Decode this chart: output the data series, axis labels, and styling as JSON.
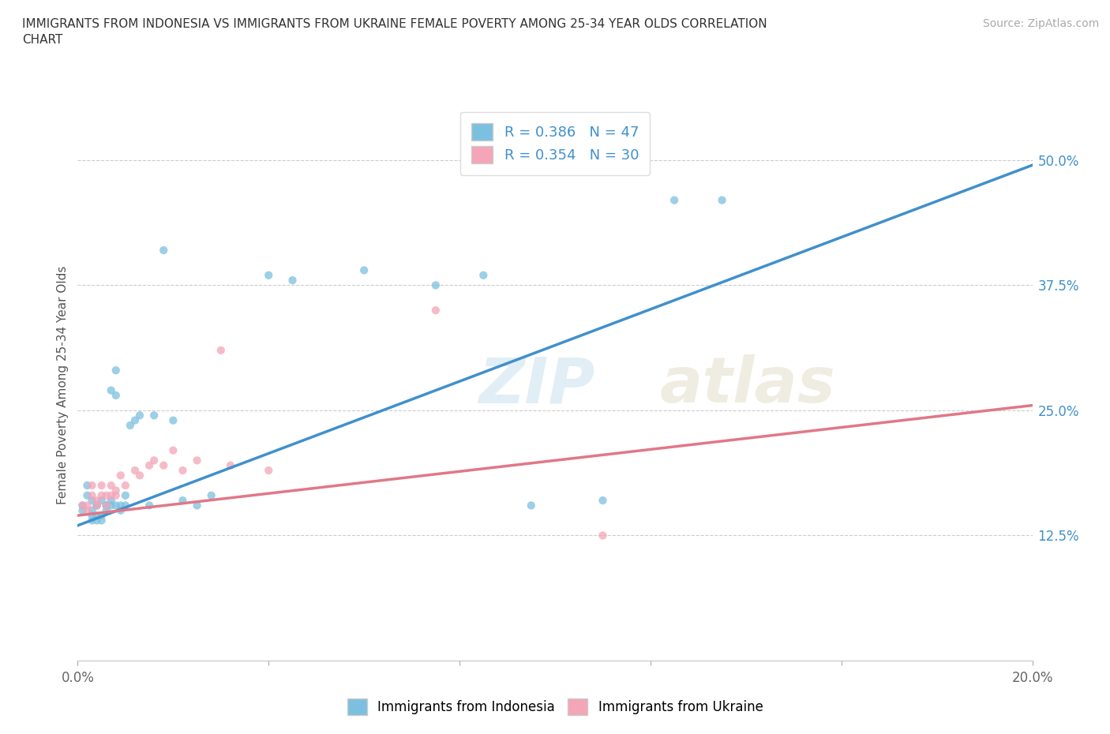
{
  "title": "IMMIGRANTS FROM INDONESIA VS IMMIGRANTS FROM UKRAINE FEMALE POVERTY AMONG 25-34 YEAR OLDS CORRELATION\nCHART",
  "source": "Source: ZipAtlas.com",
  "ylabel": "Female Poverty Among 25-34 Year Olds",
  "xlim": [
    0.0,
    0.2
  ],
  "ylim": [
    0.0,
    0.55
  ],
  "xtick_positions": [
    0.0,
    0.04,
    0.08,
    0.12,
    0.16,
    0.2
  ],
  "xticklabels": [
    "0.0%",
    "",
    "",
    "",
    "",
    "20.0%"
  ],
  "ytick_vals": [
    0.125,
    0.25,
    0.375,
    0.5
  ],
  "ytick_labels": [
    "12.5%",
    "25.0%",
    "37.5%",
    "50.0%"
  ],
  "indonesia_color": "#7dbfdf",
  "ukraine_color": "#f4a5b8",
  "indonesia_line_color": "#4090cc",
  "ukraine_line_color": "#e07888",
  "indonesia_R": 0.386,
  "indonesia_N": 47,
  "ukraine_R": 0.354,
  "ukraine_N": 30,
  "legend_label_indonesia": "Immigrants from Indonesia",
  "legend_label_ukraine": "Immigrants from Ukraine",
  "watermark_zip": "ZIP",
  "watermark_atlas": "atlas",
  "background_color": "#ffffff",
  "indonesia_line_x0": 0.0,
  "indonesia_line_y0": 0.135,
  "indonesia_line_x1": 0.2,
  "indonesia_line_y1": 0.495,
  "ukraine_line_x0": 0.0,
  "ukraine_line_y0": 0.145,
  "ukraine_line_x1": 0.2,
  "ukraine_line_y1": 0.255,
  "indonesia_x": [
    0.001,
    0.001,
    0.002,
    0.002,
    0.003,
    0.003,
    0.003,
    0.003,
    0.004,
    0.004,
    0.004,
    0.004,
    0.005,
    0.005,
    0.005,
    0.006,
    0.006,
    0.006,
    0.007,
    0.007,
    0.007,
    0.008,
    0.008,
    0.008,
    0.009,
    0.009,
    0.01,
    0.01,
    0.011,
    0.012,
    0.013,
    0.015,
    0.016,
    0.018,
    0.02,
    0.022,
    0.025,
    0.028,
    0.04,
    0.045,
    0.06,
    0.075,
    0.085,
    0.095,
    0.11,
    0.125,
    0.135
  ],
  "indonesia_y": [
    0.155,
    0.15,
    0.165,
    0.175,
    0.15,
    0.145,
    0.16,
    0.14,
    0.155,
    0.155,
    0.145,
    0.14,
    0.16,
    0.145,
    0.14,
    0.155,
    0.155,
    0.15,
    0.155,
    0.16,
    0.27,
    0.155,
    0.265,
    0.29,
    0.155,
    0.15,
    0.155,
    0.165,
    0.235,
    0.24,
    0.245,
    0.155,
    0.245,
    0.41,
    0.24,
    0.16,
    0.155,
    0.165,
    0.385,
    0.38,
    0.39,
    0.375,
    0.385,
    0.155,
    0.16,
    0.46,
    0.46
  ],
  "ukraine_x": [
    0.001,
    0.002,
    0.002,
    0.003,
    0.003,
    0.004,
    0.004,
    0.005,
    0.005,
    0.006,
    0.006,
    0.007,
    0.007,
    0.008,
    0.008,
    0.009,
    0.01,
    0.012,
    0.013,
    0.015,
    0.016,
    0.018,
    0.02,
    0.022,
    0.025,
    0.03,
    0.032,
    0.04,
    0.075,
    0.11
  ],
  "ukraine_y": [
    0.155,
    0.155,
    0.15,
    0.165,
    0.175,
    0.16,
    0.155,
    0.165,
    0.175,
    0.165,
    0.155,
    0.175,
    0.165,
    0.165,
    0.17,
    0.185,
    0.175,
    0.19,
    0.185,
    0.195,
    0.2,
    0.195,
    0.21,
    0.19,
    0.2,
    0.31,
    0.195,
    0.19,
    0.35,
    0.125
  ]
}
